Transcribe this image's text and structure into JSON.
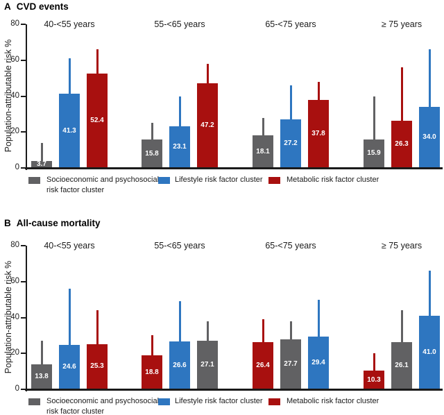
{
  "figure": {
    "y_axis_label": "Population-attributable risk %"
  },
  "legend": {
    "items": [
      {
        "key": "socioeconomic",
        "label_lines": [
          "Socioeconomic and psychosocial",
          "risk factor cluster"
        ],
        "color": "#616163"
      },
      {
        "key": "lifestyle",
        "label_lines": [
          "Lifestyle risk factor cluster"
        ],
        "color": "#2E76C0"
      },
      {
        "key": "metabolic",
        "label_lines": [
          "Metabolic risk factor cluster"
        ],
        "color": "#A8100F"
      }
    ]
  },
  "chart_data": [
    {
      "type": "bar",
      "panel": "A",
      "title": "CVD events",
      "ylabel": "Population-attributable risk %",
      "ylim": [
        0,
        80
      ],
      "yticks": [
        0,
        20,
        40,
        60,
        80
      ],
      "grid": false,
      "legend_position": "bottom",
      "error_bars": "upper-only",
      "groups": [
        {
          "label": "40-<55 years",
          "bars": [
            {
              "series": "socioeconomic",
              "value": 3.7,
              "label": "3.7",
              "ci_upper": 14
            },
            {
              "series": "lifestyle",
              "value": 41.3,
              "label": "41.3",
              "ci_upper": 61
            },
            {
              "series": "metabolic",
              "value": 52.4,
              "label": "52.4",
              "ci_upper": 66
            }
          ]
        },
        {
          "label": "55-<65 years",
          "bars": [
            {
              "series": "socioeconomic",
              "value": 15.8,
              "label": "15.8",
              "ci_upper": 25
            },
            {
              "series": "lifestyle",
              "value": 23.1,
              "label": "23.1",
              "ci_upper": 40
            },
            {
              "series": "metabolic",
              "value": 47.2,
              "label": "47.2",
              "ci_upper": 58
            }
          ]
        },
        {
          "label": "65-<75 years",
          "bars": [
            {
              "series": "socioeconomic",
              "value": 18.1,
              "label": "18.1",
              "ci_upper": 28
            },
            {
              "series": "lifestyle",
              "value": 27.2,
              "label": "27.2",
              "ci_upper": 46
            },
            {
              "series": "metabolic",
              "value": 37.8,
              "label": "37.8",
              "ci_upper": 48
            }
          ]
        },
        {
          "label": "≥ 75 years",
          "bars": [
            {
              "series": "socioeconomic",
              "value": 15.9,
              "label": "15.9",
              "ci_upper": 40
            },
            {
              "series": "metabolic",
              "value": 26.3,
              "label": "26.3",
              "ci_upper": 56
            },
            {
              "series": "lifestyle",
              "value": 34.0,
              "label": "34.0",
              "ci_upper": 66
            }
          ]
        }
      ]
    },
    {
      "type": "bar",
      "panel": "B",
      "title": "All-cause mortality",
      "ylabel": "Population-attributable risk %",
      "ylim": [
        0,
        80
      ],
      "yticks": [
        0,
        20,
        40,
        60,
        80
      ],
      "grid": false,
      "legend_position": "bottom",
      "error_bars": "upper-only",
      "groups": [
        {
          "label": "40-<55 years",
          "bars": [
            {
              "series": "socioeconomic",
              "value": 13.8,
              "label": "13.8",
              "ci_upper": 27
            },
            {
              "series": "lifestyle",
              "value": 24.6,
              "label": "24.6",
              "ci_upper": 56
            },
            {
              "series": "metabolic",
              "value": 25.3,
              "label": "25.3",
              "ci_upper": 44
            }
          ]
        },
        {
          "label": "55-<65 years",
          "bars": [
            {
              "series": "metabolic",
              "value": 18.8,
              "label": "18.8",
              "ci_upper": 30
            },
            {
              "series": "lifestyle",
              "value": 26.6,
              "label": "26.6",
              "ci_upper": 49
            },
            {
              "series": "socioeconomic",
              "value": 27.1,
              "label": "27.1",
              "ci_upper": 38
            }
          ]
        },
        {
          "label": "65-<75 years",
          "bars": [
            {
              "series": "metabolic",
              "value": 26.4,
              "label": "26.4",
              "ci_upper": 39
            },
            {
              "series": "socioeconomic",
              "value": 27.7,
              "label": "27.7",
              "ci_upper": 38
            },
            {
              "series": "lifestyle",
              "value": 29.4,
              "label": "29.4",
              "ci_upper": 50
            }
          ]
        },
        {
          "label": "≥ 75 years",
          "bars": [
            {
              "series": "metabolic",
              "value": 10.3,
              "label": "10.3",
              "ci_upper": 20
            },
            {
              "series": "socioeconomic",
              "value": 26.1,
              "label": "26.1",
              "ci_upper": 44
            },
            {
              "series": "lifestyle",
              "value": 41.0,
              "label": "41.0",
              "ci_upper": 66
            }
          ]
        }
      ]
    }
  ]
}
